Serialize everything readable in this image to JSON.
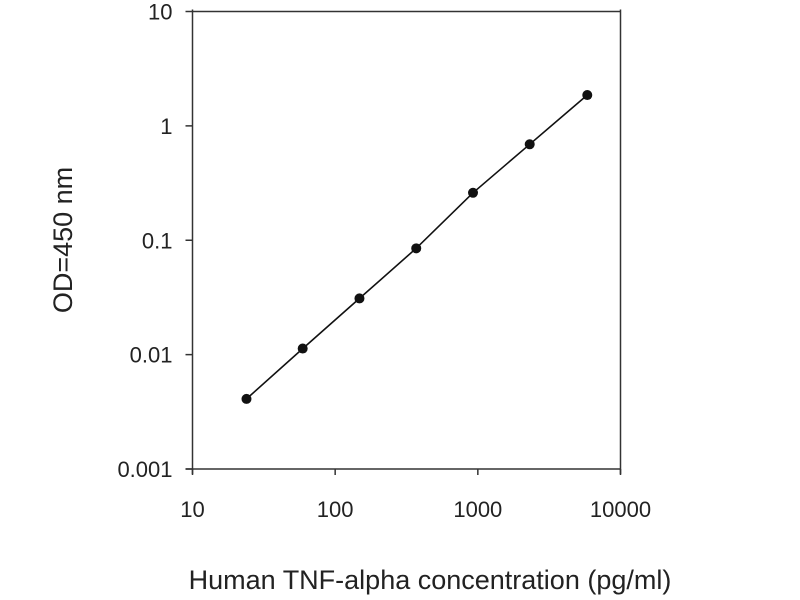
{
  "chart_data": {
    "type": "line",
    "title": "",
    "xlabel": "Human TNF-alpha concentration (pg/ml)",
    "ylabel": "OD=450 nm",
    "x_scale": "log",
    "y_scale": "log",
    "xlim": [
      10,
      10000
    ],
    "ylim": [
      0.001,
      10
    ],
    "x_ticks": [
      "10",
      "100",
      "1000",
      "10000"
    ],
    "y_ticks": [
      "0.001",
      "0.01",
      "0.1",
      "1",
      "10"
    ],
    "grid": false,
    "markers": "filled circles",
    "line_color": "#111111",
    "series": [
      {
        "x": [
          23.9,
          59.2,
          148,
          370,
          925,
          2310,
          5850
        ],
        "y": [
          0.0041,
          0.0113,
          0.031,
          0.085,
          0.26,
          0.69,
          1.86
        ]
      }
    ]
  }
}
